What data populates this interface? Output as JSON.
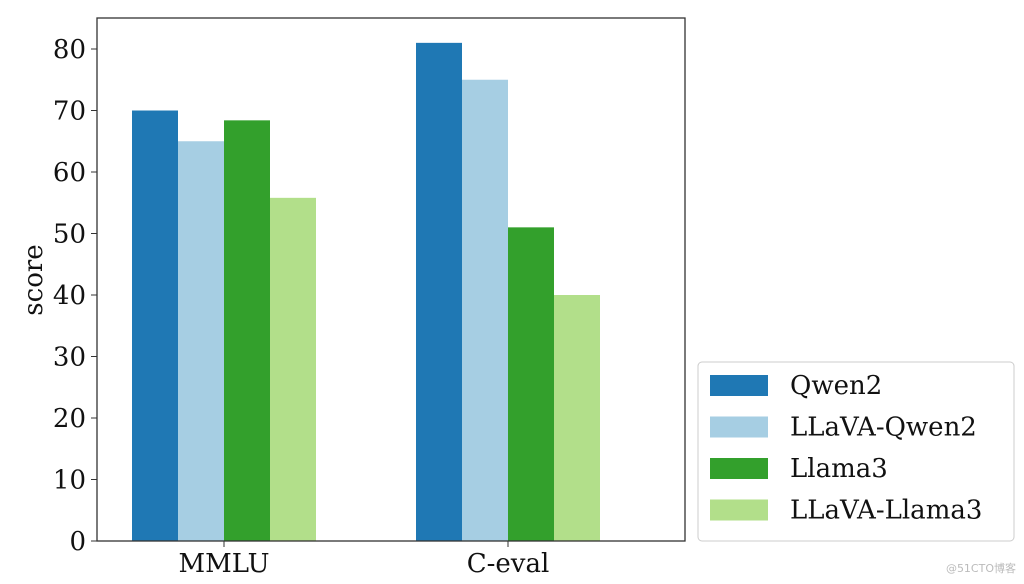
{
  "chart_data": {
    "type": "bar",
    "title": "",
    "xlabel": "",
    "ylabel": "score",
    "ylim": [
      0,
      85.5
    ],
    "yticks": [
      0,
      10,
      20,
      30,
      40,
      50,
      60,
      70,
      80
    ],
    "categories": [
      "MMLU",
      "C-eval"
    ],
    "series": [
      {
        "name": "Qwen2",
        "color": "#1f78b4",
        "values": [
          70.0,
          81.0
        ]
      },
      {
        "name": "LLaVA-Qwen2",
        "color": "#a6cee3",
        "values": [
          65.0,
          75.0
        ]
      },
      {
        "name": "Llama3",
        "color": "#33a02c",
        "values": [
          68.4,
          51.0
        ]
      },
      {
        "name": "LLaVA-Llama3",
        "color": "#b2df8a",
        "values": [
          55.8,
          40.0
        ]
      }
    ],
    "grid": false,
    "legend": "lower-right outside"
  },
  "watermark": "@51CTO博客"
}
